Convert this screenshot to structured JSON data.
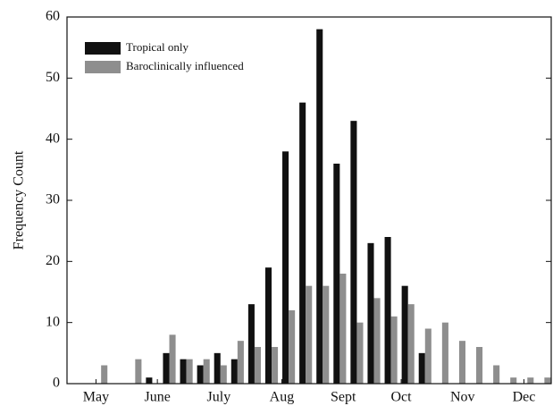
{
  "chart_data": {
    "type": "bar",
    "y_label": "Frequency Count",
    "x": [
      0,
      1,
      2,
      3,
      4,
      5,
      6,
      7,
      8,
      9,
      10,
      11,
      12,
      13,
      14,
      15,
      16,
      17,
      18,
      19,
      20,
      21,
      22,
      23,
      24,
      25,
      26
    ],
    "series": [
      {
        "name": "Tropical only",
        "color": "#111111",
        "values": [
          0,
          0,
          0,
          1,
          5,
          4,
          3,
          5,
          4,
          13,
          19,
          38,
          46,
          58,
          36,
          43,
          23,
          24,
          16,
          5,
          0,
          0,
          0,
          0,
          0,
          0,
          0
        ]
      },
      {
        "name": "Baroclinically influenced",
        "color": "#8e8e8e",
        "values": [
          3,
          0,
          4,
          0,
          8,
          4,
          4,
          3,
          7,
          6,
          6,
          12,
          16,
          16,
          18,
          10,
          14,
          11,
          13,
          9,
          10,
          7,
          6,
          3,
          1,
          1,
          1
        ]
      }
    ],
    "xlim": [
      -2,
      26.4
    ],
    "xticks": [
      {
        "value": -0.3,
        "label": "May"
      },
      {
        "value": 3.3,
        "label": "June"
      },
      {
        "value": 6.9,
        "label": "July"
      },
      {
        "value": 10.6,
        "label": "Aug"
      },
      {
        "value": 14.2,
        "label": "Sept"
      },
      {
        "value": 17.6,
        "label": "Oct"
      },
      {
        "value": 21.2,
        "label": "Nov"
      },
      {
        "value": 24.8,
        "label": "Dec"
      }
    ],
    "ylim": [
      0,
      60
    ],
    "yticks": [
      0,
      10,
      20,
      30,
      40,
      50,
      60
    ],
    "legend": "upper-left"
  }
}
